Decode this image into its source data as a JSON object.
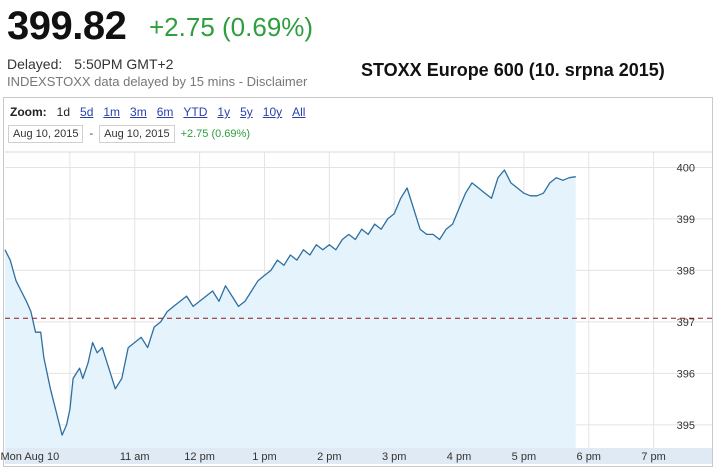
{
  "quote": {
    "price": "399.82",
    "change": "+2.75 (0.69%)",
    "delayed_label": "Delayed:",
    "delayed_time": "5:50PM GMT+2",
    "source_note": "INDEXSTOXX data delayed by 15 mins - Disclaimer"
  },
  "caption": "STOXX Europe 600 (10. srpna 2015)",
  "zoom": {
    "label": "Zoom:",
    "options": [
      "1d",
      "5d",
      "1m",
      "3m",
      "6m",
      "YTD",
      "1y",
      "5y",
      "10y",
      "All"
    ],
    "active": "1d"
  },
  "range": {
    "from": "Aug 10, 2015",
    "separator": "-",
    "to": "Aug 10, 2015",
    "change": "+2.75 (0.69%)"
  },
  "colors": {
    "line": "#2f6f9f",
    "fill": "#e5f3fc",
    "positive": "#2e9e3e",
    "reference": "#8b1a1a"
  },
  "chart_data": {
    "type": "area",
    "x_ticks": [
      "Mon Aug 10",
      "11 am",
      "12 pm",
      "1 pm",
      "2 pm",
      "3 pm",
      "4 pm",
      "5 pm",
      "6 pm",
      "7 pm"
    ],
    "x_tick_hours": [
      10,
      11,
      12,
      13,
      14,
      15,
      16,
      17,
      18,
      19
    ],
    "y_ticks": [
      "400",
      "399",
      "398",
      "397",
      "396",
      "395"
    ],
    "y_tick_values": [
      400,
      399,
      398,
      397,
      396,
      395
    ],
    "ylim": [
      394.55,
      400.3
    ],
    "xlim": [
      9.0,
      19.9
    ],
    "reference_line": 397.07,
    "series": [
      {
        "x": [
          9.0,
          9.08,
          9.17,
          9.25,
          9.33,
          9.4,
          9.47,
          9.55,
          9.6,
          9.7,
          9.8,
          9.88,
          9.95,
          10.0,
          10.05,
          10.1,
          10.15,
          10.2,
          10.28,
          10.35,
          10.42,
          10.5,
          10.6,
          10.7,
          10.8,
          10.9,
          11.0,
          11.1,
          11.2,
          11.3,
          11.4,
          11.5,
          11.6,
          11.7,
          11.8,
          11.9,
          12.0,
          12.1,
          12.2,
          12.3,
          12.4,
          12.5,
          12.6,
          12.7,
          12.8,
          12.9,
          13.0,
          13.1,
          13.2,
          13.3,
          13.4,
          13.5,
          13.6,
          13.7,
          13.8,
          13.9,
          14.0,
          14.1,
          14.2,
          14.3,
          14.4,
          14.5,
          14.6,
          14.7,
          14.8,
          14.9,
          15.0,
          15.1,
          15.2,
          15.3,
          15.4,
          15.5,
          15.6,
          15.7,
          15.8,
          15.9,
          16.0,
          16.1,
          16.2,
          16.3,
          16.4,
          16.5,
          16.6,
          16.7,
          16.8,
          16.9,
          17.0,
          17.1,
          17.2,
          17.3,
          17.4,
          17.5,
          17.6,
          17.7,
          17.8
        ],
        "y": [
          398.4,
          398.2,
          397.8,
          397.6,
          397.4,
          397.2,
          396.8,
          396.8,
          396.3,
          395.7,
          395.2,
          394.8,
          395.0,
          395.3,
          395.9,
          396.0,
          396.1,
          395.9,
          396.2,
          396.6,
          396.4,
          396.5,
          396.1,
          395.7,
          395.9,
          396.5,
          396.6,
          396.7,
          396.5,
          396.9,
          397.0,
          397.2,
          397.3,
          397.4,
          397.5,
          397.3,
          397.4,
          397.5,
          397.6,
          397.4,
          397.7,
          397.5,
          397.3,
          397.4,
          397.6,
          397.8,
          397.9,
          398.0,
          398.2,
          398.1,
          398.3,
          398.2,
          398.4,
          398.3,
          398.5,
          398.4,
          398.5,
          398.4,
          398.6,
          398.7,
          398.6,
          398.8,
          398.7,
          398.9,
          398.8,
          399.0,
          399.1,
          399.4,
          399.6,
          399.2,
          398.8,
          398.7,
          398.7,
          398.6,
          398.8,
          398.9,
          399.2,
          399.5,
          399.7,
          399.6,
          399.5,
          399.4,
          399.8,
          399.95,
          399.7,
          399.6,
          399.5,
          399.45,
          399.45,
          399.5,
          399.7,
          399.8,
          399.75,
          399.8,
          399.82
        ]
      }
    ]
  }
}
